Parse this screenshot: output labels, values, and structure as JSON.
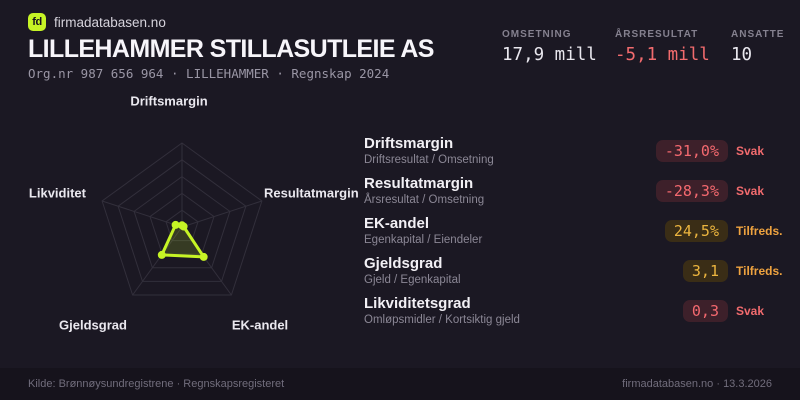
{
  "brand": {
    "logo_text": "fd",
    "name": "firmadatabasen.no"
  },
  "header": {
    "title": "LILLEHAMMER STILLASUTLEIE AS",
    "subtitle": "Org.nr 987 656 964  ·  LILLEHAMMER  ·  Regnskap 2024",
    "stats": [
      {
        "label": "OMSETNING",
        "value": "17,9 mill",
        "tone": "neutral"
      },
      {
        "label": "ÅRSRESULTAT",
        "value": "-5,1 mill",
        "tone": "negative"
      },
      {
        "label": "ANSATTE",
        "value": "10",
        "tone": "neutral"
      }
    ]
  },
  "chart_data": {
    "type": "radar",
    "axes": [
      "Driftsmargin",
      "Resultatmargin",
      "EK-andel",
      "Gjeldsgrad",
      "Likviditet"
    ],
    "values_fraction_of_max": [
      0.02,
      0.02,
      0.44,
      0.41,
      0.08
    ],
    "values_label": [
      "-31,0%",
      "-28,3%",
      "24,5%",
      "3,1",
      "0,3"
    ],
    "rings": 5,
    "grid": true,
    "legend": "none",
    "accent_color": "#c6f425"
  },
  "metrics": [
    {
      "name": "Driftsmargin",
      "formula": "Driftsresultat / Omsetning",
      "value": "-31,0%",
      "status": "Svak",
      "tone": "bad"
    },
    {
      "name": "Resultatmargin",
      "formula": "Årsresultat / Omsetning",
      "value": "-28,3%",
      "status": "Svak",
      "tone": "bad"
    },
    {
      "name": "EK-andel",
      "formula": "Egenkapital / Eiendeler",
      "value": "24,5%",
      "status": "Tilfreds.",
      "tone": "mid"
    },
    {
      "name": "Gjeldsgrad",
      "formula": "Gjeld / Egenkapital",
      "value": "3,1",
      "status": "Tilfreds.",
      "tone": "mid"
    },
    {
      "name": "Likviditetsgrad",
      "formula": "Omløpsmidler / Kortsiktig gjeld",
      "value": "0,3",
      "status": "Svak",
      "tone": "bad"
    }
  ],
  "footer": {
    "left": "Kilde: Brønnøysundregistrene · Regnskapsregisteret",
    "right": "firmadatabasen.no · 13.3.2026"
  },
  "colors": {
    "background": "#1b1823",
    "accent_lime": "#c6f425",
    "negative_red": "#f26b6e",
    "warning_amber": "#ecb53f",
    "grid": "#322f3b"
  }
}
